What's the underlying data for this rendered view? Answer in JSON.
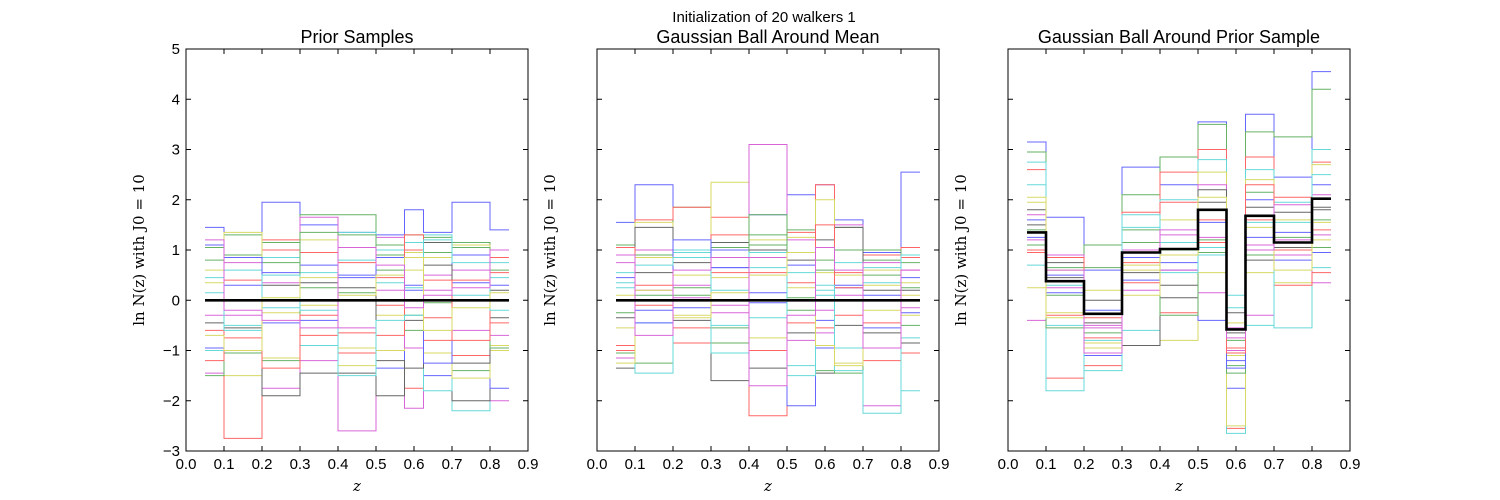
{
  "figure": {
    "suptitle": "Initialization of 20 walkers 1"
  },
  "chart_data": [
    {
      "type": "line",
      "title": "Prior Samples",
      "xlabel": "z",
      "ylabel": "ln N(z) with J0 = 10",
      "xlim": [
        0.0,
        0.9
      ],
      "ylim": [
        -3,
        5
      ],
      "xticks": [
        "0.0",
        "0.1",
        "0.2",
        "0.3",
        "0.4",
        "0.5",
        "0.6",
        "0.7",
        "0.8",
        "0.9"
      ],
      "yticks": [
        "−3",
        "−2",
        "−1",
        "0",
        "1",
        "2",
        "3",
        "4",
        "5"
      ],
      "show_ytick_labels": true,
      "bin_edges": [
        0.05,
        0.1,
        0.2,
        0.3,
        0.4,
        0.5,
        0.575,
        0.625,
        0.7,
        0.8,
        0.85
      ],
      "mean_color": "#000000",
      "mean_series": [
        0,
        0,
        0,
        0,
        0,
        0,
        0,
        0,
        0,
        0
      ],
      "walker_colors": [
        "#0000ff",
        "#008000",
        "#ff0000",
        "#00bfbf",
        "#bfbf00",
        "#bf00bf",
        "#000000"
      ],
      "walker_series": [
        [
          1.45,
          0.9,
          1.95,
          1.5,
          1.35,
          1.3,
          1.8,
          1.35,
          1.95,
          1.4
        ],
        [
          1.05,
          1.3,
          1.15,
          1.7,
          1.7,
          1.1,
          1.3,
          1.25,
          1.15,
          0.85
        ],
        [
          -0.6,
          -2.75,
          1.2,
          0.95,
          0.75,
          0.45,
          -1.75,
          -0.35,
          -1.1,
          0.55
        ],
        [
          -1.0,
          -0.5,
          0.85,
          0.55,
          1.35,
          1.0,
          1.15,
          1.3,
          -2.2,
          0.75
        ],
        [
          0.35,
          -1.5,
          -1.15,
          1.2,
          -0.95,
          -0.3,
          0.6,
          0.85,
          1.1,
          -0.9
        ],
        [
          -1.45,
          0.75,
          -1.75,
          -1.2,
          -2.6,
          1.25,
          -2.15,
          0.5,
          -0.6,
          -2.0
        ],
        [
          -0.45,
          -0.55,
          -1.9,
          -1.45,
          -1.45,
          -1.9,
          -0.4,
          1.15,
          -2.0,
          0.2
        ],
        [
          1.1,
          0.3,
          0.55,
          -0.4,
          0.45,
          -1.35,
          0.3,
          -1.5,
          0.9,
          -1.75
        ],
        [
          -1.5,
          0.9,
          0.75,
          0.25,
          0.15,
          0.6,
          -0.3,
          -0.05,
          -1.4,
          0.6
        ],
        [
          -0.95,
          -0.75,
          1.0,
          -0.7,
          -1.05,
          -0.1,
          1.3,
          -0.8,
          0.4,
          -0.45
        ],
        [
          0.15,
          0.6,
          -0.15,
          -0.9,
          0.8,
          0.35,
          0.25,
          -1.8,
          0.1,
          0.45
        ],
        [
          0.6,
          1.35,
          -0.25,
          -0.1,
          -1.3,
          -1.0,
          0.95,
          -1.05,
          -1.55,
          -1.0
        ],
        [
          -0.3,
          -0.3,
          0.35,
          1.65,
          -0.55,
          0.2,
          -0.95,
          0.2,
          0.6,
          -0.7
        ],
        [
          0.0,
          0.0,
          0.3,
          0.35,
          0.25,
          -1.2,
          -1.35,
          0.7,
          -1.25,
          -0.35
        ],
        [
          -0.95,
          0.85,
          -0.45,
          0.7,
          0.5,
          0.85,
          0.2,
          -1.25,
          0.35,
          0.3
        ],
        [
          0.8,
          -1.05,
          -1.2,
          1.35,
          1.3,
          0.9,
          -0.6,
          0.95,
          1.05,
          -0.95
        ],
        [
          -1.2,
          0.4,
          -1.35,
          -0.3,
          -0.65,
          -0.7,
          1.0,
          0.4,
          -0.8,
          0.85
        ],
        [
          0.45,
          -0.6,
          0.5,
          -0.2,
          -1.5,
          -0.4,
          -0.3,
          1.2,
          0.75,
          -0.2
        ],
        [
          -0.7,
          -1.0,
          0.05,
          0.45,
          0.1,
          0.5,
          0.85,
          -0.6,
          -0.15,
          0.15
        ],
        [
          1.2,
          -0.2,
          -0.4,
          -0.55,
          1.05,
          0.7,
          -0.15,
          0.1,
          0.25,
          1.0
        ]
      ]
    },
    {
      "type": "line",
      "title": "Gaussian Ball Around Mean",
      "xlabel": "z",
      "ylabel": "ln N(z) with J0 = 10",
      "xlim": [
        0.0,
        0.9
      ],
      "ylim": [
        -3,
        5
      ],
      "xticks": [
        "0.0",
        "0.1",
        "0.2",
        "0.3",
        "0.4",
        "0.5",
        "0.6",
        "0.7",
        "0.8",
        "0.9"
      ],
      "yticks": [
        "−3",
        "−2",
        "−1",
        "0",
        "1",
        "2",
        "3",
        "4",
        "5"
      ],
      "show_ytick_labels": false,
      "bin_edges": [
        0.05,
        0.1,
        0.2,
        0.3,
        0.4,
        0.5,
        0.575,
        0.625,
        0.7,
        0.8,
        0.85
      ],
      "mean_color": "#000000",
      "mean_series": [
        0,
        0,
        0,
        0,
        0,
        0,
        0,
        0,
        0,
        0
      ],
      "walker_colors": [
        "#0000ff",
        "#008000",
        "#ff0000",
        "#00bfbf",
        "#bfbf00",
        "#bf00bf",
        "#000000"
      ],
      "walker_series": [
        [
          1.55,
          2.3,
          0.85,
          1.0,
          1.7,
          2.1,
          2.3,
          1.6,
          0.95,
          2.55
        ],
        [
          1.1,
          0.9,
          1.85,
          1.05,
          1.3,
          1.4,
          -1.4,
          1.45,
          0.8,
          0.75
        ],
        [
          -0.9,
          1.6,
          1.85,
          1.65,
          -2.3,
          1.35,
          2.3,
          0.55,
          0.9,
          1.05
        ],
        [
          0.35,
          -0.45,
          0.95,
          0.2,
          0.65,
          -1.3,
          0.2,
          -0.95,
          0.65,
          -1.8
        ],
        [
          0.1,
          1.55,
          -0.3,
          2.35,
          1.2,
          1.25,
          2.0,
          -1.25,
          0.3,
          -0.3
        ],
        [
          -1.15,
          1.0,
          0.3,
          -0.25,
          3.1,
          -0.8,
          -0.65,
          1.5,
          -2.1,
          0.6
        ],
        [
          -1.35,
          0.55,
          0.75,
          -1.6,
          1.0,
          0.8,
          -1.45,
          1.45,
          0.2,
          0.2
        ],
        [
          0.45,
          -0.45,
          -0.15,
          0.65,
          -0.05,
          -2.1,
          -0.95,
          0.25,
          -0.55,
          -0.25
        ],
        [
          -0.25,
          -1.25,
          0.1,
          -0.85,
          1.1,
          0.05,
          0.8,
          -1.45,
          0.5,
          -0.5
        ],
        [
          -1.0,
          0.3,
          -0.85,
          1.3,
          0.55,
          -0.45,
          -0.55,
          -0.3,
          -1.2,
          0.85
        ],
        [
          0.25,
          -1.45,
          1.0,
          -0.5,
          -0.35,
          0.55,
          0.1,
          0.75,
          0.35,
          -0.75
        ],
        [
          -0.55,
          0.85,
          0.5,
          0.45,
          -0.75,
          0.25,
          0.55,
          0.5,
          -0.2,
          0.35
        ],
        [
          0.75,
          0.2,
          0.05,
          -0.1,
          0.85,
          1.2,
          -0.2,
          0.1,
          0.75,
          -0.15
        ],
        [
          -0.35,
          1.45,
          -0.4,
          1.15,
          -1.35,
          -0.65,
          1.2,
          -0.5,
          -0.65,
          -0.85
        ],
        [
          0.0,
          -0.2,
          1.2,
          0.65,
          0.15,
          0.7,
          -0.4,
          0.3,
          0.1,
          0.45
        ],
        [
          -1.05,
          0.1,
          0.25,
          -0.55,
          1.7,
          -0.2,
          0.6,
          1.0,
          1.0,
          0.25
        ],
        [
          1.05,
          -0.1,
          -0.55,
          0.55,
          -1.0,
          0.35,
          1.5,
          0.25,
          -0.45,
          -1.05
        ],
        [
          0.55,
          0.7,
          0.85,
          -1.05,
          0.95,
          -1.5,
          0.3,
          -1.4,
          -2.25,
          0.9
        ],
        [
          -1.25,
          0.2,
          -0.35,
          0.15,
          0.5,
          0.95,
          -0.9,
          -1.3,
          0.6,
          0.1
        ],
        [
          0.9,
          -0.7,
          0.6,
          0.85,
          -1.7,
          -0.3,
          1.05,
          0.6,
          -0.95,
          0.6
        ]
      ]
    },
    {
      "type": "line",
      "title": "Gaussian Ball Around Prior Sample",
      "xlabel": "z",
      "ylabel": "ln N(z) with J0 = 10",
      "xlim": [
        0.0,
        0.9
      ],
      "ylim": [
        -3,
        5
      ],
      "xticks": [
        "0.0",
        "0.1",
        "0.2",
        "0.3",
        "0.4",
        "0.5",
        "0.6",
        "0.7",
        "0.8",
        "0.9"
      ],
      "yticks": [
        "−3",
        "−2",
        "−1",
        "0",
        "1",
        "2",
        "3",
        "4",
        "5"
      ],
      "show_ytick_labels": false,
      "bin_edges": [
        0.05,
        0.1,
        0.2,
        0.3,
        0.4,
        0.5,
        0.575,
        0.625,
        0.7,
        0.8,
        0.85
      ],
      "mean_color": "#000000",
      "mean_series": [
        1.35,
        0.38,
        -0.27,
        0.95,
        1.02,
        1.8,
        -0.58,
        1.68,
        1.15,
        2.02
      ],
      "walker_colors": [
        "#0000ff",
        "#008000",
        "#ff0000",
        "#00bfbf",
        "#bfbf00",
        "#bf00bf",
        "#000000"
      ],
      "walker_series": [
        [
          3.15,
          1.65,
          0.6,
          2.65,
          2.3,
          3.55,
          -1.75,
          3.7,
          2.45,
          4.55
        ],
        [
          2.95,
          0.65,
          1.1,
          2.1,
          2.85,
          3.5,
          -1.3,
          3.35,
          3.25,
          4.2
        ],
        [
          2.6,
          -1.55,
          -1.3,
          1.75,
          2.55,
          3.0,
          -2.55,
          2.85,
          2.05,
          2.75
        ],
        [
          2.3,
          -1.8,
          -0.95,
          1.45,
          2.0,
          2.8,
          -2.65,
          2.6,
          1.95,
          3.0
        ],
        [
          1.95,
          0.6,
          -0.85,
          0.7,
          1.6,
          2.55,
          -2.5,
          2.4,
          1.6,
          2.7
        ],
        [
          1.7,
          0.25,
          -0.55,
          1.0,
          1.3,
          2.3,
          -1.0,
          1.1,
          1.2,
          2.1
        ],
        [
          1.5,
          0.75,
          -0.45,
          0.55,
          0.3,
          2.2,
          -0.65,
          1.85,
          1.05,
          1.85
        ],
        [
          1.25,
          0.5,
          -1.1,
          0.85,
          0.6,
          1.55,
          -1.2,
          2.0,
          1.35,
          2.3
        ],
        [
          1.1,
          0.1,
          -0.65,
          1.4,
          1.0,
          1.2,
          -1.45,
          2.15,
          0.9,
          1.6
        ],
        [
          0.95,
          -0.3,
          -0.75,
          0.75,
          -0.25,
          1.15,
          -0.95,
          1.6,
          1.0,
          1.4
        ],
        [
          0.7,
          -0.5,
          -1.4,
          -0.6,
          1.15,
          1.05,
          -0.15,
          1.55,
          -0.55,
          0.65
        ],
        [
          0.25,
          -0.25,
          -0.95,
          0.6,
          -0.8,
          0.55,
          -1.1,
          0.55,
          0.35,
          1.55
        ],
        [
          -0.4,
          0.9,
          -0.5,
          0.2,
          0.6,
          0.15,
          -0.55,
          -0.3,
          0.9,
          0.35
        ],
        [
          1.8,
          0.45,
          0.0,
          -0.9,
          0.05,
          1.95,
          -0.25,
          0.8,
          1.75,
          1.8
        ],
        [
          1.6,
          0.15,
          -0.2,
          0.4,
          0.75,
          -0.4,
          -1.35,
          1.25,
          0.8,
          0.95
        ],
        [
          1.4,
          -0.55,
          0.65,
          1.15,
          -0.3,
          0.95,
          -0.8,
          0.9,
          1.25,
          1.05
        ],
        [
          1.0,
          0.85,
          -0.35,
          0.35,
          1.95,
          1.6,
          -1.05,
          2.3,
          0.3,
          0.55
        ],
        [
          2.75,
          0.3,
          -0.8,
          1.7,
          0.55,
          0.9,
          0.1,
          -0.5,
          1.55,
          2.5
        ],
        [
          2.05,
          -0.35,
          0.2,
          0.1,
          0.9,
          2.05,
          -0.45,
          1.45,
          0.6,
          1.2
        ],
        [
          1.2,
          0.6,
          -1.05,
          0.95,
          1.4,
          1.25,
          -0.75,
          1.0,
          1.9,
          1.3
        ]
      ]
    }
  ]
}
